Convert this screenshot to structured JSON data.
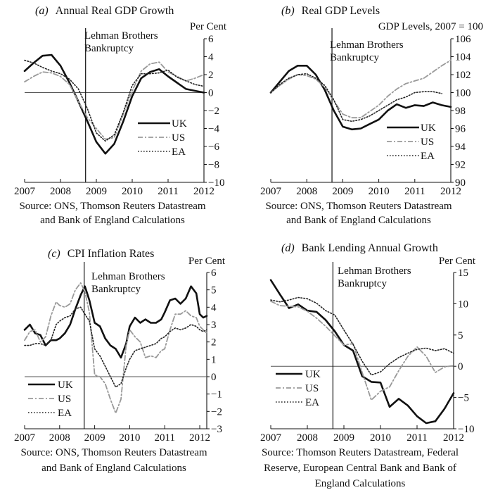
{
  "chart_data": [
    {
      "type": "line",
      "panel_letter": "(a)",
      "title": "Annual Real GDP Growth",
      "ylabel": "Per Cent",
      "xlim": [
        2007,
        2012
      ],
      "ylim": [
        -10,
        6
      ],
      "x_ticks": [
        2007,
        2008,
        2009,
        2010,
        2011,
        2012
      ],
      "y_ticks": [
        -10,
        -8,
        -6,
        -4,
        -2,
        0,
        2,
        4,
        6
      ],
      "zero_line": true,
      "grid": false,
      "annotation": {
        "text": [
          "Lehman Brothers",
          "Bankruptcy"
        ],
        "x": 2008.7
      },
      "legend": {
        "position": "lower-right"
      },
      "source": [
        "Source: ONS, Thomson Reuters Datastream",
        "and Bank of England Calculations"
      ],
      "series": [
        {
          "name": "UK",
          "style": "solid",
          "x": [
            2007.0,
            2007.25,
            2007.5,
            2007.75,
            2008.0,
            2008.25,
            2008.5,
            2008.75,
            2009.0,
            2009.25,
            2009.5,
            2009.75,
            2010.0,
            2010.25,
            2010.5,
            2010.75,
            2011.0,
            2011.25,
            2011.5,
            2011.75,
            2012.0
          ],
          "values": [
            2.4,
            3.3,
            4.1,
            4.2,
            3.0,
            1.1,
            -1.0,
            -3.2,
            -5.5,
            -6.8,
            -5.7,
            -3.2,
            -0.4,
            1.6,
            2.3,
            2.6,
            1.8,
            1.1,
            0.4,
            0.2,
            0.0
          ]
        },
        {
          "name": "US",
          "style": "dash-dot",
          "x": [
            2007.0,
            2007.25,
            2007.5,
            2007.75,
            2008.0,
            2008.25,
            2008.5,
            2008.75,
            2009.0,
            2009.25,
            2009.5,
            2009.75,
            2010.0,
            2010.25,
            2010.5,
            2010.75,
            2011.0,
            2011.25,
            2011.5,
            2011.75,
            2012.0
          ],
          "values": [
            1.2,
            1.8,
            2.3,
            2.2,
            1.8,
            0.9,
            -1.0,
            -2.8,
            -4.0,
            -5.2,
            -5.0,
            -2.4,
            0.2,
            2.4,
            3.2,
            3.4,
            2.3,
            1.8,
            1.3,
            1.6,
            2.0
          ]
        },
        {
          "name": "EA",
          "style": "dotted",
          "x": [
            2007.0,
            2007.25,
            2007.5,
            2007.75,
            2008.0,
            2008.25,
            2008.5,
            2008.75,
            2009.0,
            2009.25,
            2009.5,
            2009.75,
            2010.0,
            2010.25,
            2010.5,
            2010.75,
            2011.0,
            2011.25,
            2011.5,
            2011.75,
            2012.0
          ],
          "values": [
            3.6,
            3.3,
            2.8,
            2.4,
            2.1,
            1.5,
            0.4,
            -1.8,
            -4.5,
            -5.4,
            -4.7,
            -2.2,
            0.8,
            2.1,
            2.1,
            2.2,
            2.5,
            1.7,
            1.3,
            0.9,
            0.7
          ]
        }
      ]
    },
    {
      "type": "line",
      "panel_letter": "(b)",
      "title": "Real GDP Levels",
      "ylabel": "GDP Levels, 2007 = 100",
      "xlim": [
        2007,
        2012
      ],
      "ylim": [
        90,
        106
      ],
      "x_ticks": [
        2007,
        2008,
        2009,
        2010,
        2011,
        2012
      ],
      "y_ticks": [
        90,
        92,
        94,
        96,
        98,
        100,
        102,
        104,
        106
      ],
      "zero_line": false,
      "grid": false,
      "annotation": {
        "text": [
          "Lehman Brothers",
          "Bankruptcy"
        ],
        "x": 2008.7
      },
      "legend": {
        "position": "lower-right"
      },
      "source": [
        "Source: ONS, Thomson Reuters Datastream",
        "and Bank of England Calculations"
      ],
      "series": [
        {
          "name": "UK",
          "style": "solid",
          "x": [
            2007.0,
            2007.25,
            2007.5,
            2007.75,
            2008.0,
            2008.25,
            2008.5,
            2008.75,
            2009.0,
            2009.25,
            2009.5,
            2009.75,
            2010.0,
            2010.25,
            2010.5,
            2010.75,
            2011.0,
            2011.25,
            2011.5,
            2011.75,
            2012.0
          ],
          "values": [
            100.0,
            101.2,
            102.4,
            103.0,
            103.0,
            102.0,
            100.3,
            98.0,
            96.2,
            95.9,
            96.0,
            96.5,
            97.0,
            98.0,
            98.7,
            98.3,
            98.6,
            98.5,
            98.9,
            98.6,
            98.4
          ]
        },
        {
          "name": "US",
          "style": "dash-dot",
          "x": [
            2007.0,
            2007.25,
            2007.5,
            2007.75,
            2008.0,
            2008.25,
            2008.5,
            2008.75,
            2009.0,
            2009.25,
            2009.5,
            2009.75,
            2010.0,
            2010.25,
            2010.5,
            2010.75,
            2011.0,
            2011.25,
            2011.5,
            2011.75,
            2012.0
          ],
          "values": [
            100.0,
            100.8,
            101.5,
            102.0,
            101.9,
            101.5,
            100.6,
            99.1,
            97.6,
            97.2,
            97.2,
            97.9,
            98.6,
            99.6,
            100.4,
            101.0,
            101.3,
            101.6,
            102.3,
            103.0,
            103.6
          ]
        },
        {
          "name": "EA",
          "style": "dotted",
          "x": [
            2007.0,
            2007.25,
            2007.5,
            2007.75,
            2008.0,
            2008.25,
            2008.5,
            2008.75,
            2009.0,
            2009.25,
            2009.5,
            2009.75,
            2010.0,
            2010.25,
            2010.5,
            2010.75,
            2011.0,
            2011.25,
            2011.5,
            2011.75
          ],
          "values": [
            100.0,
            100.9,
            101.6,
            102.0,
            102.1,
            101.6,
            100.8,
            99.2,
            97.0,
            96.8,
            97.0,
            97.4,
            98.0,
            98.6,
            99.2,
            99.5,
            100.0,
            100.1,
            100.1,
            99.9
          ]
        }
      ]
    },
    {
      "type": "line",
      "panel_letter": "(c)",
      "title": "CPI Inflation Rates",
      "ylabel": "Per Cent",
      "xlim": [
        2007,
        2012.2
      ],
      "ylim": [
        -3,
        6
      ],
      "x_ticks": [
        2007,
        2008,
        2009,
        2010,
        2011,
        2012
      ],
      "y_ticks": [
        -3,
        -2,
        -1,
        0,
        1,
        2,
        3,
        4,
        5,
        6
      ],
      "zero_line": true,
      "grid": false,
      "annotation": {
        "text": [
          "Lehman Brothers",
          "Bankruptcy"
        ],
        "x": 2008.7
      },
      "legend": {
        "position": "lower-left"
      },
      "source": [
        "Source: ONS, Thomson Reuters Datastream",
        "and Bank of England Calculations"
      ],
      "series": [
        {
          "name": "UK",
          "style": "solid",
          "x": [
            2007.0,
            2007.15,
            2007.3,
            2007.45,
            2007.6,
            2007.75,
            2007.9,
            2008.0,
            2008.15,
            2008.3,
            2008.45,
            2008.6,
            2008.72,
            2008.85,
            2009.0,
            2009.15,
            2009.3,
            2009.45,
            2009.6,
            2009.75,
            2009.9,
            2010.0,
            2010.15,
            2010.3,
            2010.45,
            2010.6,
            2010.75,
            2010.9,
            2011.0,
            2011.15,
            2011.3,
            2011.45,
            2011.6,
            2011.75,
            2011.9,
            2012.0,
            2012.1,
            2012.2
          ],
          "values": [
            2.7,
            3.0,
            2.5,
            2.4,
            1.8,
            2.1,
            2.1,
            2.2,
            2.5,
            3.0,
            3.9,
            4.7,
            5.2,
            4.4,
            3.1,
            2.9,
            2.2,
            1.8,
            1.6,
            1.1,
            1.9,
            2.9,
            3.4,
            3.1,
            3.3,
            3.1,
            3.1,
            3.3,
            3.7,
            4.4,
            4.5,
            4.2,
            4.5,
            5.2,
            4.8,
            3.6,
            3.4,
            3.5
          ]
        },
        {
          "name": "US",
          "style": "dash-dot",
          "x": [
            2007.0,
            2007.15,
            2007.3,
            2007.45,
            2007.6,
            2007.75,
            2007.9,
            2008.0,
            2008.15,
            2008.3,
            2008.45,
            2008.6,
            2008.72,
            2008.85,
            2009.0,
            2009.15,
            2009.3,
            2009.45,
            2009.6,
            2009.75,
            2009.9,
            2010.0,
            2010.15,
            2010.3,
            2010.45,
            2010.6,
            2010.75,
            2010.9,
            2011.0,
            2011.15,
            2011.3,
            2011.45,
            2011.6,
            2011.75,
            2011.9,
            2012.0,
            2012.1,
            2012.2
          ],
          "values": [
            2.1,
            2.6,
            2.7,
            2.0,
            2.3,
            3.5,
            4.3,
            4.1,
            4.0,
            4.2,
            5.0,
            5.4,
            4.9,
            3.7,
            0.1,
            0.0,
            -0.4,
            -1.3,
            -2.1,
            -1.3,
            1.8,
            2.7,
            2.3,
            2.0,
            1.1,
            1.2,
            1.1,
            1.5,
            1.6,
            2.7,
            3.6,
            3.6,
            3.8,
            3.5,
            3.4,
            2.9,
            2.7,
            2.5
          ]
        },
        {
          "name": "EA",
          "style": "dotted",
          "x": [
            2007.0,
            2007.15,
            2007.3,
            2007.45,
            2007.6,
            2007.75,
            2007.9,
            2008.0,
            2008.15,
            2008.3,
            2008.45,
            2008.6,
            2008.72,
            2008.85,
            2009.0,
            2009.15,
            2009.3,
            2009.45,
            2009.6,
            2009.75,
            2009.9,
            2010.0,
            2010.15,
            2010.3,
            2010.45,
            2010.6,
            2010.75,
            2010.9,
            2011.0,
            2011.15,
            2011.3,
            2011.45,
            2011.6,
            2011.75,
            2011.9,
            2012.0,
            2012.1,
            2012.2
          ],
          "values": [
            1.8,
            1.8,
            1.9,
            1.9,
            1.8,
            2.1,
            3.0,
            3.2,
            3.4,
            3.5,
            3.9,
            4.0,
            3.6,
            3.2,
            1.6,
            1.2,
            0.6,
            0.0,
            -0.6,
            -0.4,
            0.5,
            1.0,
            1.5,
            1.6,
            1.7,
            1.8,
            1.9,
            2.2,
            2.3,
            2.6,
            2.8,
            2.7,
            2.8,
            3.0,
            2.9,
            2.7,
            2.6,
            2.7
          ]
        }
      ]
    },
    {
      "type": "line",
      "panel_letter": "(d)",
      "title": "Bank Lending Annual Growth",
      "ylabel": "Per Cent",
      "xlim": [
        2007,
        2012
      ],
      "ylim": [
        -10,
        15
      ],
      "x_ticks": [
        2007,
        2008,
        2009,
        2010,
        2011,
        2012
      ],
      "y_ticks": [
        -10,
        -5,
        0,
        5,
        10,
        15
      ],
      "zero_line": true,
      "grid": false,
      "annotation": {
        "text": [
          "Lehman Brothers",
          "Bankruptcy"
        ],
        "x": 2008.7
      },
      "legend": {
        "position": "lower-left"
      },
      "source": [
        "Source:  Thomson Reuters Datastream, Federal",
        "Reserve, European Central Bank and Bank of",
        "England Calculations"
      ],
      "series": [
        {
          "name": "UK",
          "style": "solid",
          "x": [
            2007.0,
            2007.25,
            2007.5,
            2007.75,
            2008.0,
            2008.25,
            2008.5,
            2008.75,
            2009.0,
            2009.25,
            2009.5,
            2009.75,
            2010.0,
            2010.25,
            2010.5,
            2010.75,
            2011.0,
            2011.25,
            2011.5,
            2011.75,
            2012.0
          ],
          "values": [
            13.8,
            11.5,
            9.3,
            9.9,
            8.9,
            8.7,
            7.4,
            5.6,
            3.4,
            2.5,
            -1.6,
            -2.5,
            -2.6,
            -6.5,
            -5.2,
            -6.3,
            -8.0,
            -9.1,
            -8.8,
            -6.8,
            -4.3
          ]
        },
        {
          "name": "US",
          "style": "dash-dot",
          "x": [
            2007.0,
            2007.25,
            2007.5,
            2007.75,
            2008.0,
            2008.25,
            2008.5,
            2008.75,
            2009.0,
            2009.25,
            2009.5,
            2009.75,
            2010.0,
            2010.25,
            2010.5,
            2010.75,
            2011.0,
            2011.25,
            2011.5,
            2011.75,
            2012.0
          ],
          "values": [
            10.4,
            9.7,
            9.6,
            9.5,
            8.8,
            7.7,
            6.4,
            4.9,
            3.4,
            3.6,
            -1.0,
            -5.4,
            -4.0,
            -3.3,
            -0.7,
            1.6,
            3.1,
            1.6,
            -1.0,
            -0.1,
            0.1
          ]
        },
        {
          "name": "EA",
          "style": "dotted",
          "x": [
            2007.0,
            2007.25,
            2007.5,
            2007.75,
            2008.0,
            2008.25,
            2008.5,
            2008.75,
            2009.0,
            2009.25,
            2009.5,
            2009.75,
            2010.0,
            2010.25,
            2010.5,
            2010.75,
            2011.0,
            2011.25,
            2011.5,
            2011.75,
            2012.0
          ],
          "values": [
            10.6,
            10.3,
            10.6,
            11.0,
            10.8,
            10.1,
            8.9,
            8.2,
            5.8,
            3.5,
            0.8,
            -1.4,
            -0.9,
            0.4,
            1.4,
            2.1,
            2.7,
            2.9,
            2.5,
            2.8,
            2.1
          ]
        }
      ]
    }
  ]
}
